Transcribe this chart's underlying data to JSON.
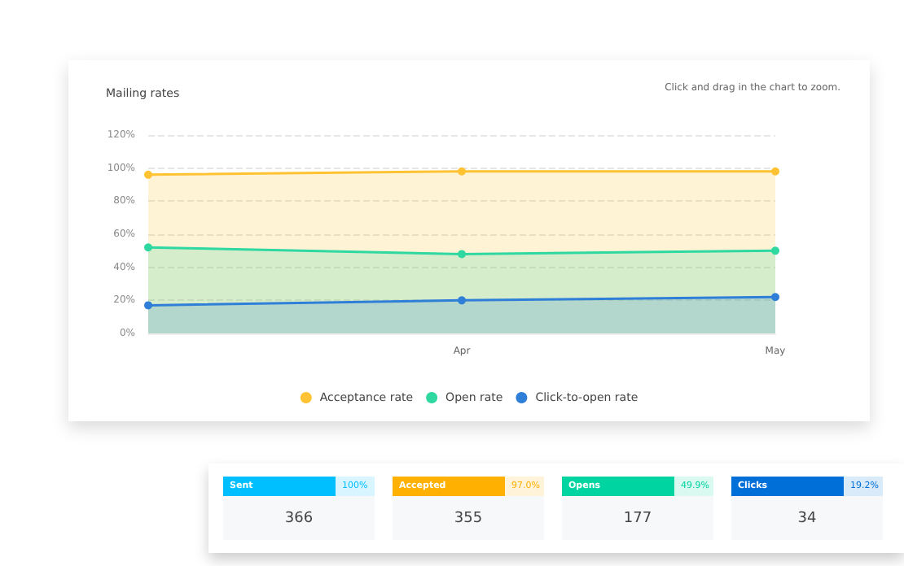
{
  "chart_data": [
    {
      "type": "area",
      "title": "Mailing rates",
      "annotations": [
        "Click and drag in the chart to zoom."
      ],
      "categories": [
        null,
        "Apr",
        "May"
      ],
      "series": [
        {
          "name": "Acceptance rate",
          "color": "#ffc233",
          "values": [
            96,
            98,
            98
          ]
        },
        {
          "name": "Open rate",
          "color": "#2ed8a0",
          "values": [
            52,
            48,
            50
          ]
        },
        {
          "name": "Click-to-open rate",
          "color": "#2f7fd8",
          "values": [
            17,
            20,
            22
          ]
        }
      ],
      "ylim": [
        0,
        120
      ],
      "yticks": [
        {
          "value": 0,
          "label": "0%"
        },
        {
          "value": 20,
          "label": "20%"
        },
        {
          "value": 40,
          "label": "40%"
        },
        {
          "value": 60,
          "label": "60%"
        },
        {
          "value": 80,
          "label": "80%"
        },
        {
          "value": 100,
          "label": "100%"
        },
        {
          "value": 120,
          "label": "120%"
        }
      ],
      "grid": "y",
      "legend": "bottom",
      "marker": "circle",
      "line_style": "solid"
    },
    {
      "type": "other",
      "categories": [
        "Sent",
        "Accepted",
        "Opens",
        "Clicks"
      ],
      "values": [
        366,
        355,
        177,
        34
      ],
      "data_labels": true,
      "annotations": [
        "100%",
        "97.0%",
        "49.9%",
        "19.2%"
      ],
      "colors": [
        "#00bfff",
        "#ffb000",
        "#00d4a0",
        "#0070d8"
      ]
    }
  ]
}
